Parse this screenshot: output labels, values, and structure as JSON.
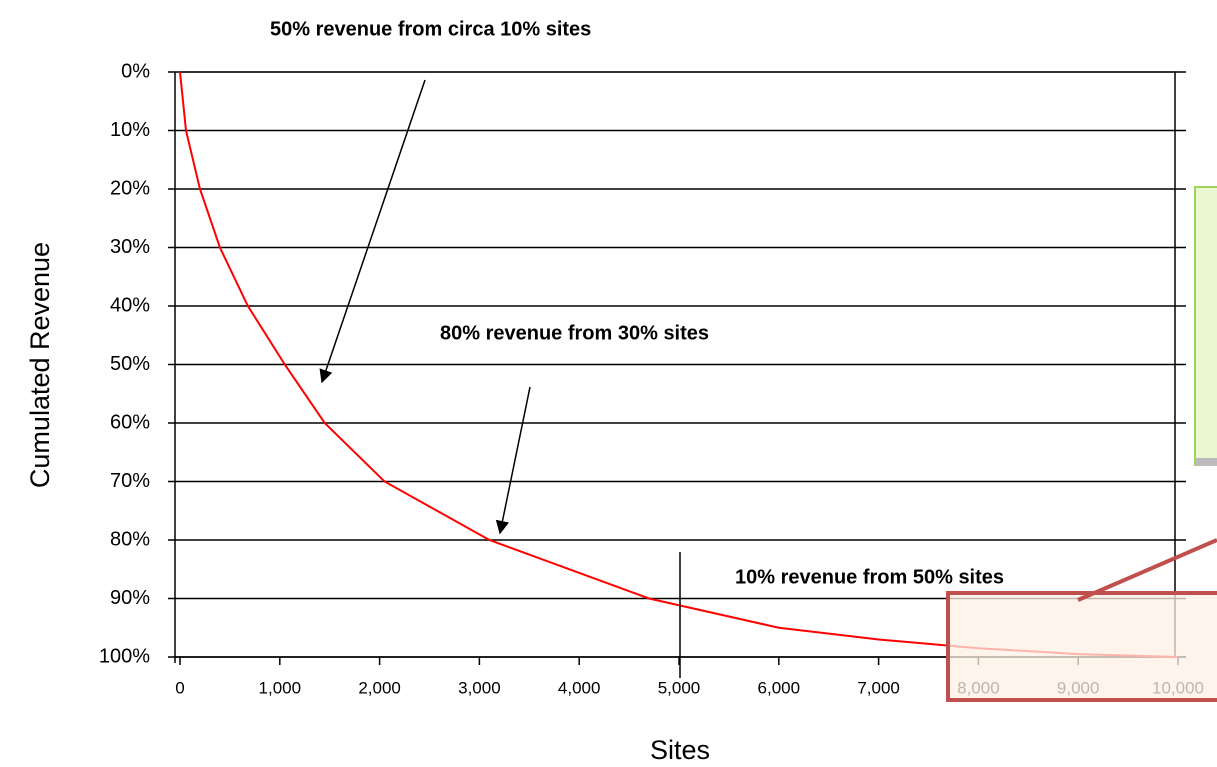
{
  "chart_data": {
    "type": "line",
    "annotations": [
      "50% revenue from circa 10% sites",
      "80% revenue from 30% sites",
      "10% revenue from 50% sites"
    ],
    "x_label": "Sites",
    "y_label": "Cumulated Revenue",
    "y_inverted": true,
    "grid": true,
    "xlim": [
      0,
      10000
    ],
    "ylim": [
      0,
      100
    ],
    "xticks": [
      0,
      {
        "value": 1000,
        "label": "1,000"
      },
      {
        "value": 2000,
        "label": "2,000"
      },
      {
        "value": 3000,
        "label": "3,000"
      },
      {
        "value": 4000,
        "label": "4,000"
      },
      {
        "value": 5000,
        "label": "5,000"
      },
      {
        "value": 6000,
        "label": "6,000"
      },
      {
        "value": 7000,
        "label": "7,000"
      },
      {
        "value": 8000,
        "label": "8,000"
      },
      {
        "value": 9000,
        "label": "9,000"
      },
      {
        "value": 10000,
        "label": "10,000"
      }
    ],
    "yticks": [
      {
        "value": 0,
        "label": "0%"
      },
      {
        "value": 10,
        "label": "10%"
      },
      {
        "value": 20,
        "label": "20%"
      },
      {
        "value": 30,
        "label": "30%"
      },
      {
        "value": 40,
        "label": "40%"
      },
      {
        "value": 50,
        "label": "50%"
      },
      {
        "value": 60,
        "label": "60%"
      },
      {
        "value": 70,
        "label": "70%"
      },
      {
        "value": 80,
        "label": "80%"
      },
      {
        "value": 90,
        "label": "90%"
      },
      {
        "value": 100,
        "label": "100%"
      }
    ],
    "x": [
      0,
      60,
      200,
      400,
      680,
      1050,
      1450,
      2050,
      3100,
      4700,
      6000,
      7000,
      8000,
      9000,
      10000
    ],
    "series": [
      {
        "name": "Cumulated Revenue",
        "color": "#ff0000",
        "values": [
          0,
          10,
          20,
          30,
          40,
          50,
          60,
          70,
          80,
          90,
          95,
          97,
          98.5,
          99.5,
          100
        ]
      }
    ]
  }
}
